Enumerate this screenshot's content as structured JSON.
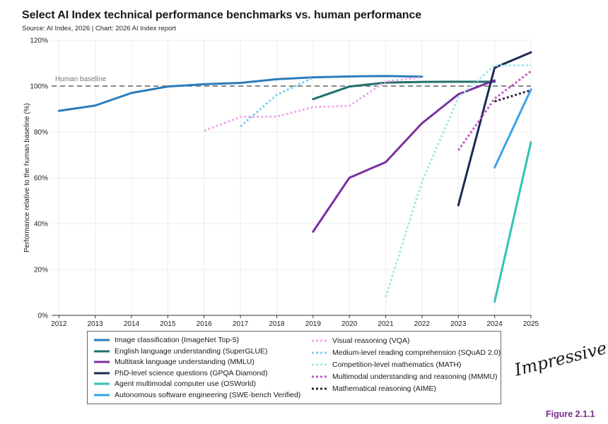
{
  "header": {
    "title": "Select AI Index technical performance benchmarks vs. human performance",
    "source": "Source: AI Index, 2026 | Chart: 2026 AI Index report"
  },
  "figure_label": "Figure 2.1.1",
  "handwritten_note": "Impressive !",
  "chart_data": {
    "type": "line",
    "title": "Select AI Index technical performance benchmarks vs. human performance",
    "xlabel": "",
    "ylabel": "Performance relative to the human baseline (%)",
    "x_ticks": [
      2012,
      2013,
      2014,
      2015,
      2016,
      2017,
      2018,
      2019,
      2020,
      2021,
      2022,
      2023,
      2024,
      2025
    ],
    "y_ticks": [
      0,
      20,
      40,
      60,
      80,
      100,
      120
    ],
    "y_tick_labels": [
      "0%",
      "20%",
      "40%",
      "60%",
      "80%",
      "100%",
      "120%"
    ],
    "xlim": [
      2011.8,
      2025
    ],
    "ylim": [
      0,
      120
    ],
    "baseline": {
      "value": 100,
      "label": "Human baseline"
    },
    "series": [
      {
        "name": "Image classification (ImageNet Top-5)",
        "color": "#2b7bb9",
        "style": "solid",
        "x": [
          2012,
          2013,
          2014,
          2015,
          2016,
          2017,
          2018,
          2019,
          2020,
          2021,
          2022
        ],
        "y": [
          89.2,
          91.5,
          97,
          99.8,
          100.8,
          101.4,
          103,
          103.8,
          104.2,
          104.4,
          104.1
        ]
      },
      {
        "name": "English language understanding (SuperGLUE)",
        "color": "#1f6f6b",
        "style": "solid",
        "x": [
          2019,
          2020,
          2021,
          2022,
          2023,
          2024
        ],
        "y": [
          94.3,
          99.8,
          101.5,
          101.8,
          101.9,
          101.9
        ]
      },
      {
        "name": "Multitask language understanding (MMLU)",
        "color": "#7b2f9e",
        "style": "solid",
        "x": [
          2019,
          2020,
          2021,
          2022,
          2023,
          2024
        ],
        "y": [
          36.5,
          60,
          66.8,
          83.8,
          96.4,
          102.5
        ]
      },
      {
        "name": "PhD-level science questions (GPQA Diamond)",
        "color": "#1b2a57",
        "style": "solid",
        "x": [
          2023,
          2024,
          2025
        ],
        "y": [
          48,
          108,
          114.7
        ]
      },
      {
        "name": "Agent multimodal computer use (OSWorld)",
        "color": "#2ec4b6",
        "style": "solid",
        "x": [
          2024,
          2025
        ],
        "y": [
          6,
          75.5
        ]
      },
      {
        "name": "Autonomous software engineering (SWE-bench Verified)",
        "color": "#3aa2ea",
        "style": "solid",
        "x": [
          2024,
          2025
        ],
        "y": [
          64.5,
          98.5
        ]
      },
      {
        "name": "Visual reasoning (VQA)",
        "color": "#efadec",
        "style": "dotted",
        "x": [
          2016,
          2017,
          2018,
          2019,
          2020,
          2021,
          2022
        ],
        "y": [
          80.5,
          86.5,
          86.7,
          90.8,
          91.4,
          102,
          103.8
        ]
      },
      {
        "name": "Medium-level reading comprehension (SQuAD 2.0)",
        "color": "#86cfee",
        "style": "dotted",
        "x": [
          2017,
          2018,
          2019
        ],
        "y": [
          82.4,
          96.2,
          103.6
        ]
      },
      {
        "name": "Competition-level mathematics (MATH)",
        "color": "#a5e6ea",
        "style": "dotted",
        "x": [
          2021,
          2022,
          2023,
          2024,
          2025
        ],
        "y": [
          8,
          58.3,
          95,
          109,
          109
        ]
      },
      {
        "name": "Multimodal understanding and reasoning (MMMU)",
        "color": "#c655c8",
        "style": "dotted",
        "x": [
          2023,
          2024,
          2025
        ],
        "y": [
          72,
          94.5,
          106.5
        ]
      },
      {
        "name": "Mathematical reasoning (AIME)",
        "color": "#3a1f42",
        "style": "dotted",
        "x": [
          2024,
          2025
        ],
        "y": [
          93.3,
          98.2
        ]
      }
    ]
  }
}
